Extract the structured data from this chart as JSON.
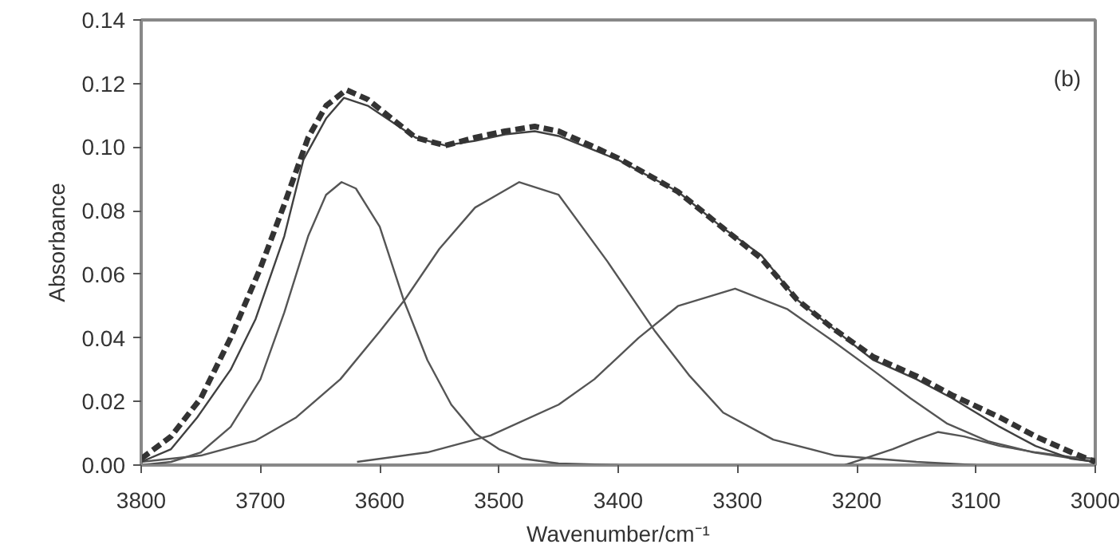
{
  "chart_data": {
    "type": "line",
    "xlabel": "Wavenumber/cm⁻¹",
    "ylabel": "Absorbance",
    "annotations": [
      "(b)"
    ],
    "xlim": [
      3800,
      3000
    ],
    "xticks": [
      3800,
      3700,
      3600,
      3500,
      3400,
      3300,
      3200,
      3100,
      3000
    ],
    "ylim": [
      0,
      0.14
    ],
    "yticks": [
      {
        "value": 0,
        "label": "0.00"
      },
      {
        "value": 0.02,
        "label": "0.02"
      },
      {
        "value": 0.04,
        "label": "0.04"
      },
      {
        "value": 0.06,
        "label": "0.06"
      },
      {
        "value": 0.08,
        "label": "0.08"
      },
      {
        "value": 0.1,
        "label": "0.10"
      },
      {
        "value": 0.12,
        "label": "0.12"
      },
      {
        "value": 0.14,
        "label": "0.14"
      }
    ],
    "grid": false,
    "marker": "none",
    "series": [
      {
        "color": "#555555",
        "line_style": "solid",
        "x": [
          3800,
          3775,
          3750,
          3725,
          3700,
          3680,
          3660,
          3645,
          3632,
          3620,
          3600,
          3580,
          3560,
          3540,
          3520,
          3500,
          3480,
          3450,
          3400
        ],
        "values": [
          0,
          0.001,
          0.004,
          0.012,
          0.027,
          0.048,
          0.072,
          0.085,
          0.089,
          0.087,
          0.075,
          0.052,
          0.033,
          0.019,
          0.01,
          0.005,
          0.002,
          0.0005,
          0
        ]
      },
      {
        "color": "#555555",
        "line_style": "solid",
        "x": [
          3800,
          3750,
          3704,
          3670,
          3633,
          3600,
          3579,
          3550,
          3520,
          3483,
          3450,
          3409,
          3369,
          3340,
          3312,
          3270,
          3218,
          3150,
          3100
        ],
        "values": [
          0.001,
          0.003,
          0.0077,
          0.015,
          0.027,
          0.042,
          0.052,
          0.068,
          0.081,
          0.089,
          0.085,
          0.064,
          0.042,
          0.028,
          0.0165,
          0.008,
          0.003,
          0.001,
          0
        ]
      },
      {
        "color": "#555555",
        "line_style": "solid",
        "x": [
          3619,
          3560,
          3507,
          3450,
          3420,
          3383,
          3350,
          3302,
          3258,
          3220,
          3186,
          3155,
          3124,
          3090,
          3052,
          3000
        ],
        "values": [
          0.001,
          0.004,
          0.0093,
          0.019,
          0.027,
          0.04,
          0.05,
          0.0555,
          0.049,
          0.039,
          0.0297,
          0.021,
          0.013,
          0.0075,
          0.004,
          0.001
        ]
      },
      {
        "color": "#555555",
        "line_style": "solid",
        "x": [
          3210,
          3170,
          3150,
          3132,
          3110,
          3080,
          3050,
          3020,
          3000
        ],
        "values": [
          0,
          0.005,
          0.008,
          0.0104,
          0.009,
          0.006,
          0.004,
          0.0025,
          0.002
        ]
      },
      {
        "color": "#404040",
        "line_style": "solid",
        "x": [
          3800,
          3775,
          3753,
          3725,
          3704,
          3680,
          3664,
          3645,
          3630,
          3610,
          3590,
          3570,
          3545,
          3520,
          3495,
          3470,
          3450,
          3420,
          3400,
          3350,
          3312,
          3280,
          3250,
          3220,
          3186,
          3150,
          3120,
          3080,
          3050,
          3020,
          3000
        ],
        "values": [
          0.001,
          0.005,
          0.015,
          0.03,
          0.046,
          0.072,
          0.096,
          0.109,
          0.1155,
          0.113,
          0.108,
          0.103,
          0.1005,
          0.102,
          0.104,
          0.105,
          0.1035,
          0.099,
          0.096,
          0.086,
          0.0745,
          0.066,
          0.052,
          0.043,
          0.033,
          0.027,
          0.021,
          0.012,
          0.006,
          0.002,
          0.001
        ]
      },
      {
        "color": "#333333",
        "line_style": "dashed",
        "x": [
          3800,
          3775,
          3750,
          3725,
          3700,
          3680,
          3660,
          3645,
          3628,
          3610,
          3590,
          3570,
          3545,
          3520,
          3495,
          3470,
          3450,
          3420,
          3400,
          3350,
          3312,
          3280,
          3250,
          3220,
          3186,
          3150,
          3120,
          3080,
          3050,
          3020,
          3000
        ],
        "values": [
          0.002,
          0.009,
          0.021,
          0.04,
          0.062,
          0.082,
          0.103,
          0.113,
          0.118,
          0.115,
          0.109,
          0.103,
          0.1005,
          0.103,
          0.105,
          0.1065,
          0.105,
          0.1,
          0.0965,
          0.086,
          0.0745,
          0.065,
          0.052,
          0.043,
          0.034,
          0.028,
          0.022,
          0.015,
          0.009,
          0.004,
          0.001
        ]
      }
    ]
  }
}
